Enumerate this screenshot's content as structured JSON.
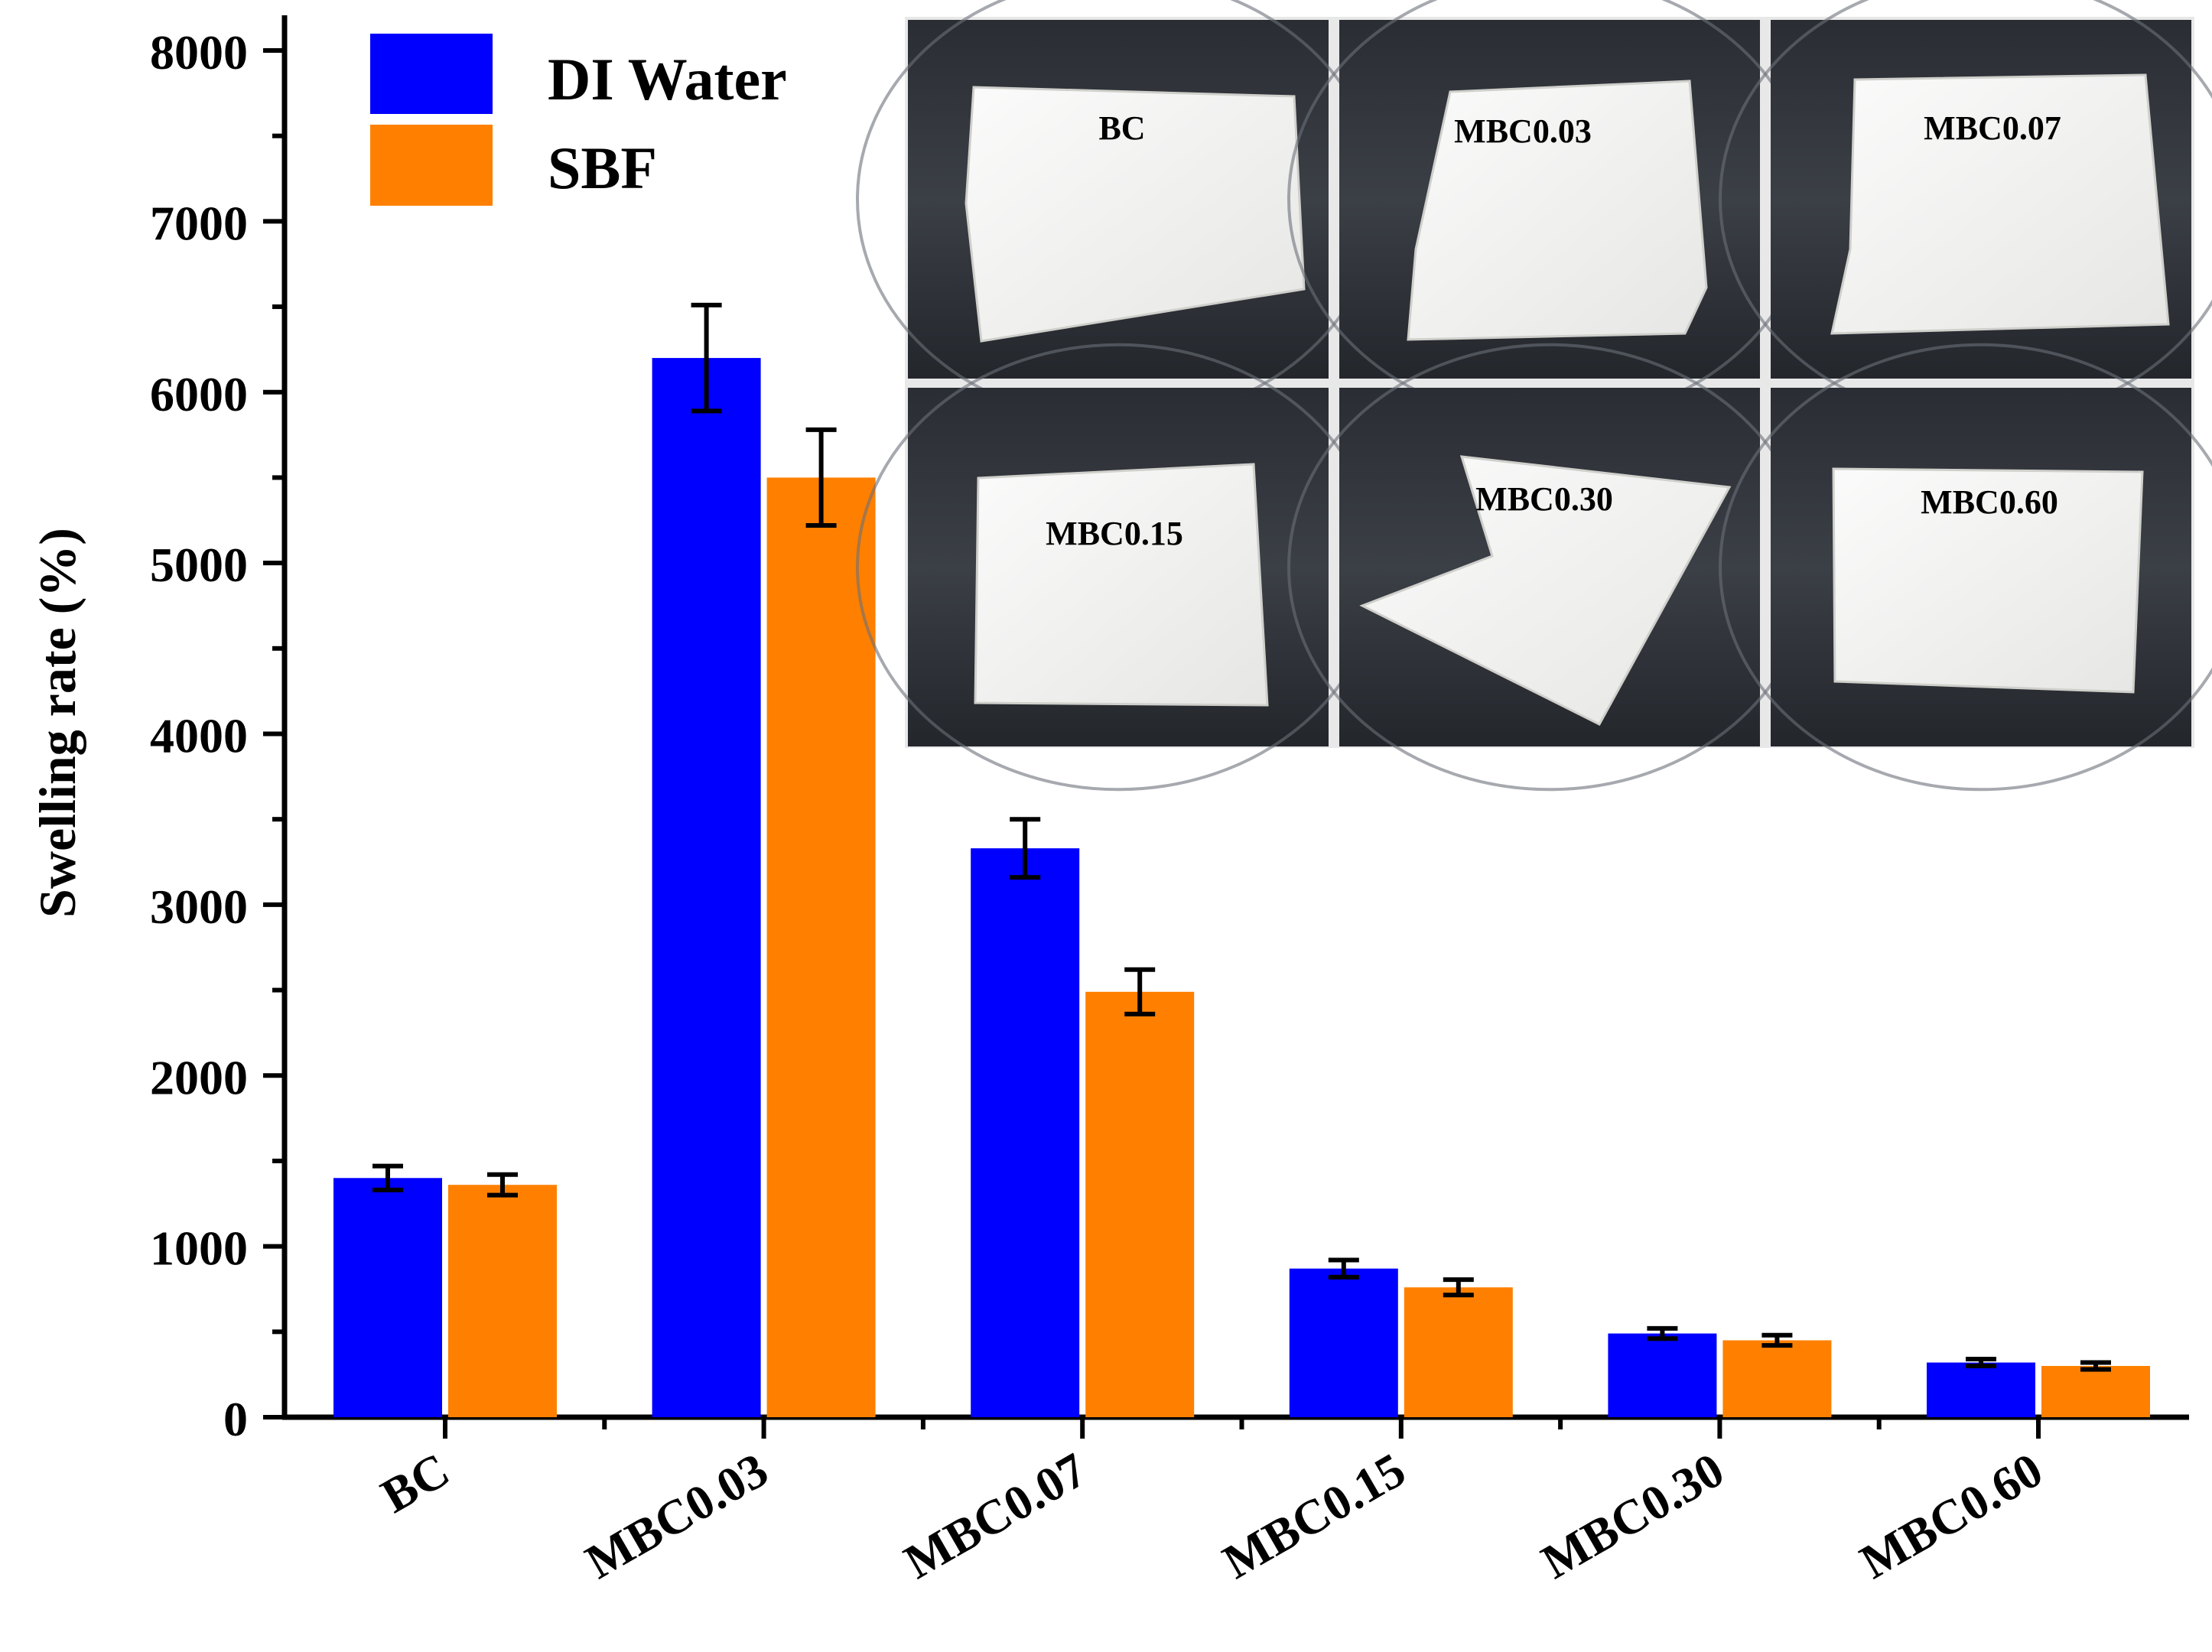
{
  "chart_data": {
    "type": "bar",
    "title": "",
    "xlabel": "",
    "ylabel": "Swelling rate (%)",
    "ylim": [
      0,
      8000
    ],
    "yticks": [
      0,
      1000,
      2000,
      3000,
      4000,
      5000,
      6000,
      7000,
      8000
    ],
    "categories": [
      "BC",
      "MBC0.03",
      "MBC0.07",
      "MBC0.15",
      "MBC0.30",
      "MBC0.60"
    ],
    "series": [
      {
        "name": "DI Water",
        "color": "#0000ff",
        "values": [
          1400,
          6200,
          3330,
          870,
          490,
          320
        ],
        "errors": [
          70,
          310,
          170,
          50,
          30,
          20
        ]
      },
      {
        "name": "SBF",
        "color": "#ff8000",
        "values": [
          1360,
          5500,
          2490,
          760,
          450,
          300
        ],
        "errors": [
          60,
          280,
          130,
          45,
          30,
          20
        ]
      }
    ],
    "legend_position": "top-left",
    "grid": false,
    "inset": {
      "description_labels": [
        "BC",
        "MBC0.03",
        "MBC0.07",
        "MBC0.15",
        "MBC0.30",
        "MBC0.60"
      ]
    }
  }
}
